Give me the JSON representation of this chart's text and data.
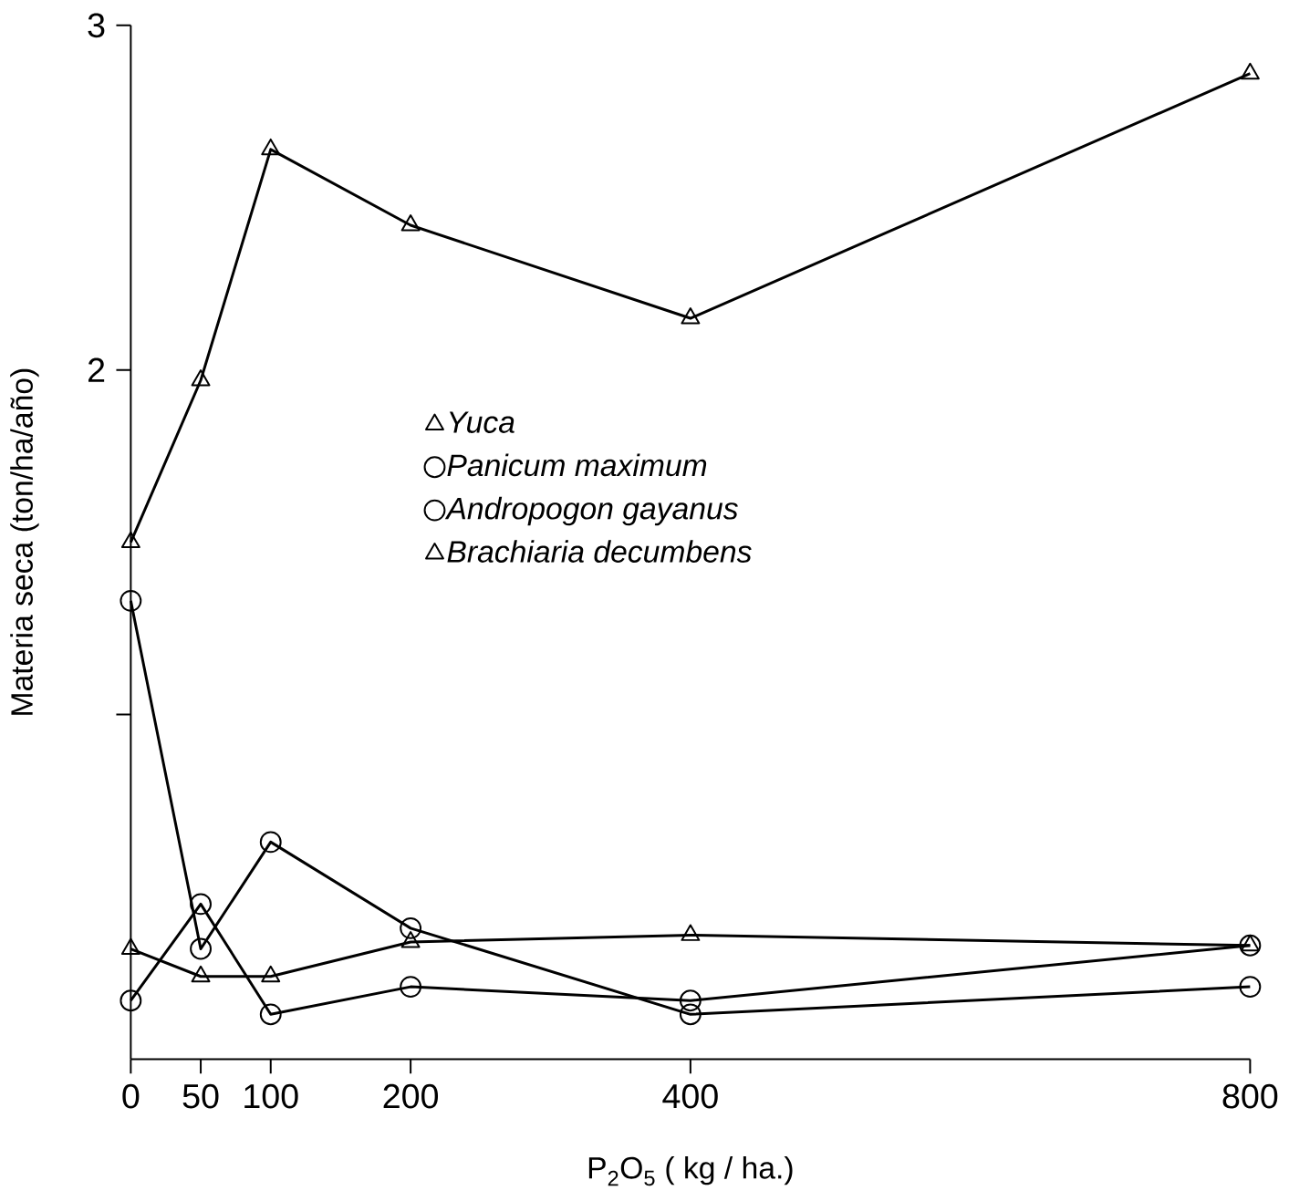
{
  "chart_data": {
    "type": "line",
    "xlabel": "P$_{2}$O$_{5}$ ( kg / ha.)",
    "ylabel": "Materia seca (ton/ha/año)",
    "x": [
      0,
      50,
      100,
      200,
      400,
      800
    ],
    "series": [
      {
        "name": "Yuca",
        "color": "#000000",
        "marker": "triangle",
        "values": [
          1.5,
          1.97,
          2.64,
          2.42,
          2.15,
          2.86
        ]
      },
      {
        "name": "Panicum maximum",
        "color": "#000000",
        "marker": "circle",
        "values": [
          1.33,
          0.32,
          0.63,
          0.38,
          0.13,
          0.21
        ]
      },
      {
        "name": "Andropogon gayanus",
        "color": "#000000",
        "marker": "circle",
        "values": [
          0.17,
          0.45,
          0.13,
          0.21,
          0.17,
          0.33
        ]
      },
      {
        "name": "Brachiaria decumbens",
        "color": "#000000",
        "marker": "triangle",
        "values": [
          0.32,
          0.24,
          0.24,
          0.34,
          0.36,
          0.33
        ]
      }
    ],
    "xlim": [
      0,
      800
    ],
    "ylim": [
      0,
      3
    ],
    "xticks": [
      0,
      50,
      100,
      200,
      400,
      800
    ],
    "yticks": [
      {
        "value": 1,
        "label": null
      },
      2,
      3
    ],
    "legend": "center",
    "grid": false,
    "line_style": "solid"
  }
}
